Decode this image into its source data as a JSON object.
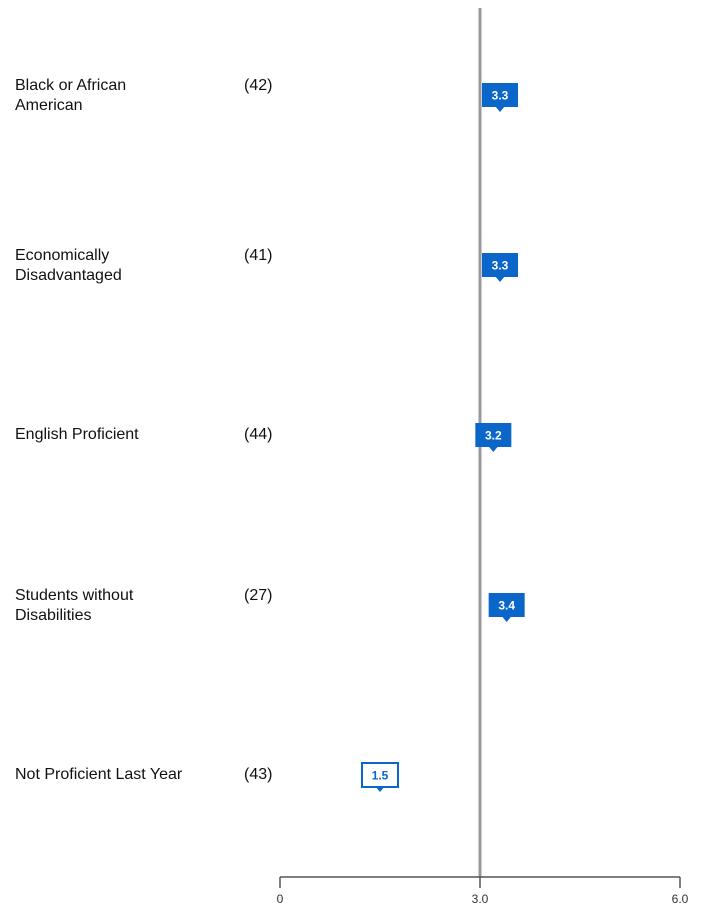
{
  "chart_data": {
    "type": "marker",
    "categories": [
      "Black or African\nAmerican",
      "Economically\nDisadvantaged",
      "English Proficient",
      "Students without\nDisabilities",
      "Not Proficient Last Year"
    ],
    "counts": [
      "(42)",
      "(41)",
      "(44)",
      "(27)",
      "(43)"
    ],
    "values": [
      3.3,
      3.3,
      3.2,
      3.4,
      1.5
    ],
    "marker_fill": [
      "#0a66c8",
      "#0a66c8",
      "#0a66c8",
      "#0a66c8",
      "#ffffff"
    ],
    "color": "#0a66c8",
    "reference_line": 3,
    "xlim": [
      0,
      6
    ],
    "xticks": [
      0,
      {
        "value": 3,
        "label": "3.0"
      },
      {
        "value": 6,
        "label": "6.0"
      }
    ]
  }
}
